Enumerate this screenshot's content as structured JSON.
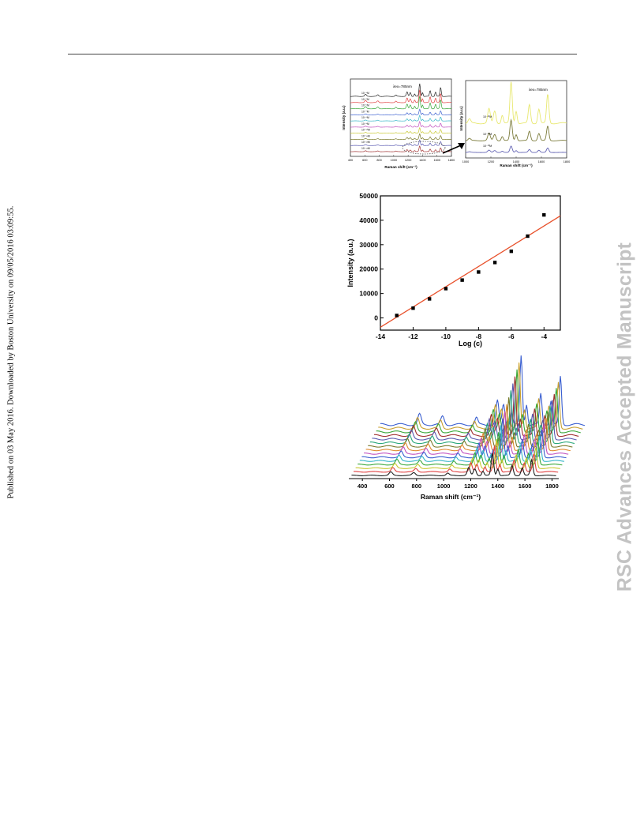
{
  "page": {
    "side_note": "Published on 03 May 2016. Downloaded by Boston University on 09/05/2016 03:09:55.",
    "watermark": "RSC Advances Accepted Manuscript"
  },
  "chart_data": [
    {
      "id": "spectra-stack",
      "type": "line",
      "xlabel": "Raman shift (cm⁻¹)",
      "ylabel": "Intensity (a.u.)",
      "xlim": [
        400,
        1800
      ],
      "xticks": [
        "400",
        "600",
        "800",
        "1000",
        "1200",
        "1400",
        "1600",
        "1800"
      ],
      "annotation": "λex=785nm",
      "series": [
        {
          "name": "10⁻⁴M",
          "color": "#222222"
        },
        {
          "name": "10⁻⁵M",
          "color": "#e04040"
        },
        {
          "name": "10⁻⁶M",
          "color": "#3aa83a"
        },
        {
          "name": "10⁻⁷M",
          "color": "#3a5fd0"
        },
        {
          "name": "10⁻⁸M",
          "color": "#35b5c8"
        },
        {
          "name": "10⁻⁹M",
          "color": "#c050c0"
        },
        {
          "name": "10⁻¹⁰M",
          "color": "#c8c830"
        },
        {
          "name": "10⁻¹¹M",
          "color": "#7a7a2a"
        },
        {
          "name": "10⁻¹²M",
          "color": "#5858b0"
        },
        {
          "name": "10⁻¹³M",
          "color": "#a03030"
        }
      ]
    },
    {
      "id": "spectra-zoom",
      "type": "line",
      "xlabel": "Raman shift (cm⁻¹)",
      "ylabel": "Intensity (a.u.)",
      "xlim": [
        1000,
        1800
      ],
      "xticks": [
        "1000",
        "1200",
        "1400",
        "1600",
        "1800"
      ],
      "annotation": "λex=785nm",
      "series": [
        {
          "name": "10⁻¹¹M",
          "color": "#e8e870"
        },
        {
          "name": "10⁻¹²M",
          "color": "#7c7c3c"
        },
        {
          "name": "10⁻¹³M",
          "color": "#6464b4"
        }
      ]
    },
    {
      "id": "calibration",
      "type": "scatter",
      "xlabel": "Log (c)",
      "ylabel": "Intensity (a.u.)",
      "xlim": [
        -14,
        -3
      ],
      "ylim": [
        -5000,
        50000
      ],
      "xticks": [
        "-14",
        "-12",
        "-10",
        "-8",
        "-6",
        "-4"
      ],
      "yticks": [
        "0",
        "10000",
        "20000",
        "30000",
        "40000",
        "50000"
      ],
      "points": [
        {
          "x": -13,
          "y": 1000
        },
        {
          "x": -12,
          "y": 4000
        },
        {
          "x": -11,
          "y": 7800
        },
        {
          "x": -10,
          "y": 12000
        },
        {
          "x": -9,
          "y": 15500
        },
        {
          "x": -8,
          "y": 18800
        },
        {
          "x": -7,
          "y": 22700
        },
        {
          "x": -6,
          "y": 27300
        },
        {
          "x": -5,
          "y": 33500
        },
        {
          "x": -4,
          "y": 42200
        }
      ],
      "fit": {
        "x": [
          -14,
          -3
        ],
        "y": [
          -3800,
          41800
        ],
        "color": "#e8502a"
      }
    },
    {
      "id": "waterfall",
      "type": "line",
      "xlabel": "Raman shift (cm⁻¹)",
      "xlim": [
        300,
        1850
      ],
      "xticks": [
        "400",
        "600",
        "800",
        "1000",
        "1200",
        "1400",
        "1600",
        "1800"
      ],
      "colors": [
        "#222222",
        "#e04040",
        "#c8c830",
        "#3aa83a",
        "#35b5c8",
        "#3a5fd0",
        "#c050c0",
        "#e08a30",
        "#7a7a2a",
        "#2aa87a",
        "#5858b0",
        "#a03030",
        "#3aa83a",
        "#c8a030",
        "#3a5fd0"
      ]
    }
  ]
}
